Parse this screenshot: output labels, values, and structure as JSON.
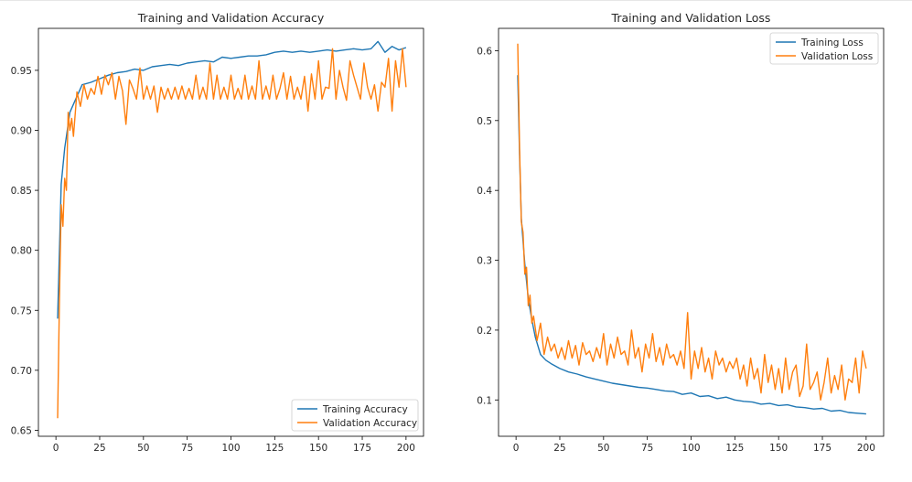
{
  "chart_data": [
    {
      "type": "line",
      "title": "Training and Validation Accuracy",
      "xlabel": "",
      "ylabel": "",
      "xlim": [
        -10,
        210
      ],
      "ylim": [
        0.645,
        0.985
      ],
      "xticks": [
        0,
        25,
        50,
        75,
        100,
        125,
        150,
        175,
        200
      ],
      "yticks": [
        0.65,
        0.7,
        0.75,
        0.8,
        0.85,
        0.9,
        0.95
      ],
      "ytick_labels": [
        "0.65",
        "0.70",
        "0.75",
        "0.80",
        "0.85",
        "0.90",
        "0.95"
      ],
      "legend_position": "lower-right",
      "series": [
        {
          "name": "Training Accuracy",
          "color": "#1f77b4",
          "x": [
            1,
            3,
            5,
            8,
            11,
            15,
            20,
            25,
            30,
            35,
            40,
            45,
            50,
            55,
            60,
            65,
            70,
            75,
            80,
            85,
            90,
            95,
            100,
            105,
            110,
            115,
            120,
            125,
            130,
            135,
            140,
            145,
            150,
            155,
            160,
            165,
            170,
            175,
            180,
            184,
            188,
            192,
            196,
            200
          ],
          "y": [
            0.743,
            0.855,
            0.885,
            0.915,
            0.925,
            0.938,
            0.94,
            0.943,
            0.946,
            0.948,
            0.949,
            0.951,
            0.95,
            0.953,
            0.954,
            0.955,
            0.954,
            0.956,
            0.957,
            0.958,
            0.957,
            0.961,
            0.96,
            0.961,
            0.962,
            0.962,
            0.963,
            0.965,
            0.966,
            0.965,
            0.966,
            0.965,
            0.966,
            0.967,
            0.966,
            0.967,
            0.968,
            0.967,
            0.968,
            0.974,
            0.965,
            0.97,
            0.967,
            0.969
          ]
        },
        {
          "name": "Validation Accuracy",
          "color": "#ff7f0e",
          "x": [
            1,
            2,
            3,
            4,
            5,
            6,
            7,
            8,
            9,
            10,
            12,
            14,
            16,
            18,
            20,
            22,
            24,
            26,
            28,
            30,
            32,
            34,
            36,
            38,
            40,
            42,
            44,
            46,
            48,
            50,
            52,
            54,
            56,
            58,
            60,
            62,
            64,
            66,
            68,
            70,
            72,
            74,
            76,
            78,
            80,
            82,
            84,
            86,
            88,
            90,
            92,
            94,
            96,
            98,
            100,
            102,
            104,
            106,
            108,
            110,
            112,
            114,
            116,
            118,
            120,
            122,
            124,
            126,
            128,
            130,
            132,
            134,
            136,
            138,
            140,
            142,
            144,
            146,
            148,
            150,
            152,
            154,
            156,
            158,
            160,
            162,
            164,
            166,
            168,
            170,
            172,
            174,
            176,
            178,
            180,
            182,
            184,
            186,
            188,
            190,
            192,
            194,
            196,
            198,
            200
          ],
          "y": [
            0.66,
            0.76,
            0.838,
            0.82,
            0.86,
            0.85,
            0.915,
            0.9,
            0.91,
            0.895,
            0.932,
            0.92,
            0.938,
            0.926,
            0.935,
            0.93,
            0.945,
            0.93,
            0.946,
            0.938,
            0.948,
            0.926,
            0.945,
            0.933,
            0.905,
            0.942,
            0.935,
            0.926,
            0.952,
            0.926,
            0.937,
            0.926,
            0.937,
            0.915,
            0.936,
            0.926,
            0.935,
            0.926,
            0.936,
            0.926,
            0.937,
            0.926,
            0.935,
            0.926,
            0.946,
            0.926,
            0.936,
            0.926,
            0.956,
            0.926,
            0.946,
            0.926,
            0.936,
            0.926,
            0.946,
            0.926,
            0.935,
            0.926,
            0.946,
            0.926,
            0.937,
            0.926,
            0.958,
            0.926,
            0.937,
            0.926,
            0.946,
            0.926,
            0.935,
            0.948,
            0.926,
            0.945,
            0.926,
            0.936,
            0.926,
            0.945,
            0.916,
            0.947,
            0.926,
            0.958,
            0.926,
            0.936,
            0.935,
            0.968,
            0.926,
            0.95,
            0.936,
            0.925,
            0.958,
            0.946,
            0.936,
            0.926,
            0.956,
            0.936,
            0.926,
            0.938,
            0.916,
            0.94,
            0.936,
            0.96,
            0.916,
            0.958,
            0.936,
            0.968,
            0.936
          ]
        }
      ]
    },
    {
      "type": "line",
      "title": "Training and Validation Loss",
      "xlabel": "",
      "ylabel": "",
      "xlim": [
        -10,
        210
      ],
      "ylim": [
        0.048,
        0.632
      ],
      "xticks": [
        0,
        25,
        50,
        75,
        100,
        125,
        150,
        175,
        200
      ],
      "yticks": [
        0.1,
        0.2,
        0.3,
        0.4,
        0.5,
        0.6
      ],
      "ytick_labels": [
        "0.1",
        "0.2",
        "0.3",
        "0.4",
        "0.5",
        "0.6"
      ],
      "legend_position": "upper-right",
      "series": [
        {
          "name": "Training Loss",
          "color": "#1f77b4",
          "x": [
            1,
            2,
            3,
            5,
            7,
            9,
            11,
            14,
            17,
            20,
            25,
            30,
            35,
            40,
            45,
            50,
            55,
            60,
            65,
            70,
            75,
            80,
            85,
            90,
            95,
            100,
            105,
            110,
            115,
            120,
            125,
            130,
            135,
            140,
            145,
            150,
            155,
            160,
            165,
            170,
            175,
            180,
            185,
            190,
            195,
            200
          ],
          "y": [
            0.565,
            0.45,
            0.36,
            0.295,
            0.245,
            0.215,
            0.19,
            0.165,
            0.157,
            0.152,
            0.145,
            0.14,
            0.137,
            0.133,
            0.13,
            0.127,
            0.124,
            0.122,
            0.12,
            0.118,
            0.117,
            0.115,
            0.113,
            0.112,
            0.108,
            0.11,
            0.105,
            0.106,
            0.102,
            0.104,
            0.1,
            0.098,
            0.097,
            0.094,
            0.095,
            0.092,
            0.093,
            0.09,
            0.089,
            0.087,
            0.088,
            0.084,
            0.085,
            0.082,
            0.081,
            0.08
          ]
        },
        {
          "name": "Validation Loss",
          "color": "#ff7f0e",
          "x": [
            1,
            2,
            3,
            4,
            5,
            6,
            7,
            8,
            9,
            10,
            12,
            14,
            16,
            18,
            20,
            22,
            24,
            26,
            28,
            30,
            32,
            34,
            36,
            38,
            40,
            42,
            44,
            46,
            48,
            50,
            52,
            54,
            56,
            58,
            60,
            62,
            64,
            66,
            68,
            70,
            72,
            74,
            76,
            78,
            80,
            82,
            84,
            86,
            88,
            90,
            92,
            94,
            96,
            98,
            100,
            102,
            104,
            106,
            108,
            110,
            112,
            114,
            116,
            118,
            120,
            122,
            124,
            126,
            128,
            130,
            132,
            134,
            136,
            138,
            140,
            142,
            144,
            146,
            148,
            150,
            152,
            154,
            156,
            158,
            160,
            162,
            164,
            166,
            168,
            170,
            172,
            174,
            176,
            178,
            180,
            182,
            184,
            186,
            188,
            190,
            192,
            194,
            196,
            198,
            200
          ],
          "y": [
            0.61,
            0.46,
            0.355,
            0.34,
            0.28,
            0.29,
            0.235,
            0.25,
            0.21,
            0.22,
            0.185,
            0.21,
            0.165,
            0.19,
            0.17,
            0.18,
            0.16,
            0.175,
            0.158,
            0.185,
            0.16,
            0.178,
            0.15,
            0.182,
            0.165,
            0.17,
            0.155,
            0.175,
            0.16,
            0.195,
            0.15,
            0.18,
            0.16,
            0.19,
            0.165,
            0.17,
            0.15,
            0.2,
            0.16,
            0.175,
            0.14,
            0.18,
            0.16,
            0.195,
            0.155,
            0.175,
            0.15,
            0.18,
            0.16,
            0.165,
            0.15,
            0.17,
            0.145,
            0.225,
            0.13,
            0.17,
            0.145,
            0.175,
            0.14,
            0.16,
            0.13,
            0.17,
            0.15,
            0.16,
            0.14,
            0.155,
            0.145,
            0.16,
            0.13,
            0.15,
            0.12,
            0.16,
            0.13,
            0.145,
            0.11,
            0.165,
            0.125,
            0.15,
            0.115,
            0.145,
            0.11,
            0.16,
            0.115,
            0.14,
            0.15,
            0.105,
            0.12,
            0.18,
            0.115,
            0.125,
            0.14,
            0.1,
            0.125,
            0.16,
            0.11,
            0.135,
            0.115,
            0.15,
            0.1,
            0.13,
            0.125,
            0.16,
            0.11,
            0.17,
            0.145
          ]
        }
      ]
    }
  ]
}
